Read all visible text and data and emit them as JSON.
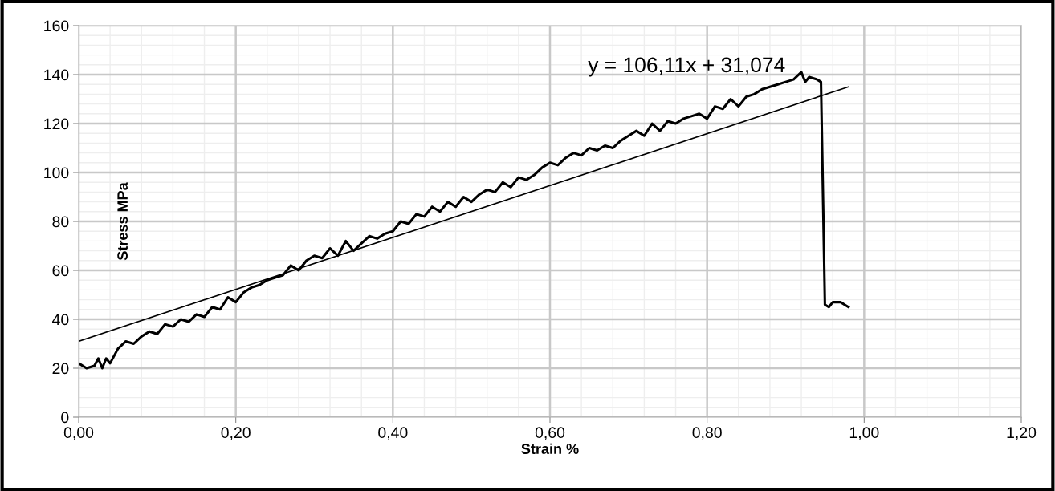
{
  "chart_data": {
    "type": "line",
    "xlabel": "Strain %",
    "ylabel": "Stress MPa",
    "xlim": [
      0,
      1.2
    ],
    "ylim": [
      0,
      160
    ],
    "xticks": [
      {
        "value": 0,
        "label": "0,00"
      },
      {
        "value": 0.2,
        "label": "0,20"
      },
      {
        "value": 0.4,
        "label": "0,40"
      },
      {
        "value": 0.6,
        "label": "0,60"
      },
      {
        "value": 0.8,
        "label": "0,80"
      },
      {
        "value": 1.0,
        "label": "1,00"
      },
      {
        "value": 1.2,
        "label": "1,20"
      }
    ],
    "yticks": [
      0,
      20,
      40,
      60,
      80,
      100,
      120,
      140,
      160
    ],
    "grid": true,
    "legend": false,
    "marker": "none",
    "line_style": "solid",
    "annotations": [
      "y = 106,11x + 31,074"
    ],
    "series": [
      {
        "color": "#000000",
        "x": [
          0,
          0.01,
          0.02,
          0.025,
          0.03,
          0.035,
          0.04,
          0.05,
          0.06,
          0.07,
          0.08,
          0.09,
          0.1,
          0.11,
          0.12,
          0.13,
          0.14,
          0.15,
          0.16,
          0.17,
          0.18,
          0.19,
          0.2,
          0.21,
          0.22,
          0.23,
          0.24,
          0.25,
          0.26,
          0.27,
          0.28,
          0.29,
          0.3,
          0.31,
          0.32,
          0.33,
          0.34,
          0.35,
          0.36,
          0.37,
          0.38,
          0.39,
          0.4,
          0.41,
          0.42,
          0.43,
          0.44,
          0.45,
          0.46,
          0.47,
          0.48,
          0.49,
          0.5,
          0.51,
          0.52,
          0.53,
          0.54,
          0.55,
          0.56,
          0.57,
          0.58,
          0.59,
          0.6,
          0.61,
          0.62,
          0.63,
          0.64,
          0.65,
          0.66,
          0.67,
          0.68,
          0.69,
          0.7,
          0.71,
          0.72,
          0.73,
          0.74,
          0.75,
          0.76,
          0.77,
          0.78,
          0.79,
          0.8,
          0.81,
          0.82,
          0.83,
          0.84,
          0.85,
          0.86,
          0.87,
          0.88,
          0.89,
          0.9,
          0.91,
          0.92,
          0.925,
          0.93,
          0.94,
          0.945,
          0.95,
          0.955,
          0.96,
          0.97,
          0.975,
          0.98
        ],
        "values": [
          22,
          20,
          21,
          24,
          20,
          24,
          22,
          28,
          31,
          30,
          33,
          35,
          34,
          38,
          37,
          40,
          39,
          42,
          41,
          45,
          44,
          49,
          47,
          51,
          53,
          54,
          56,
          57,
          58,
          62,
          60,
          64,
          66,
          65,
          69,
          66,
          72,
          68,
          71,
          74,
          73,
          75,
          76,
          80,
          79,
          83,
          82,
          86,
          84,
          88,
          86,
          90,
          88,
          91,
          93,
          92,
          96,
          94,
          98,
          97,
          99,
          102,
          104,
          103,
          106,
          108,
          107,
          110,
          109,
          111,
          110,
          113,
          115,
          117,
          115,
          120,
          117,
          121,
          120,
          122,
          123,
          124,
          122,
          127,
          126,
          130,
          127,
          131,
          132,
          134,
          135,
          136,
          137,
          138,
          141,
          137,
          139,
          138,
          137,
          46,
          45,
          47,
          47,
          46,
          45
        ]
      },
      {
        "type": "line",
        "color": "#000000",
        "x": [
          0,
          0.98
        ],
        "values": [
          31,
          135
        ]
      }
    ]
  }
}
